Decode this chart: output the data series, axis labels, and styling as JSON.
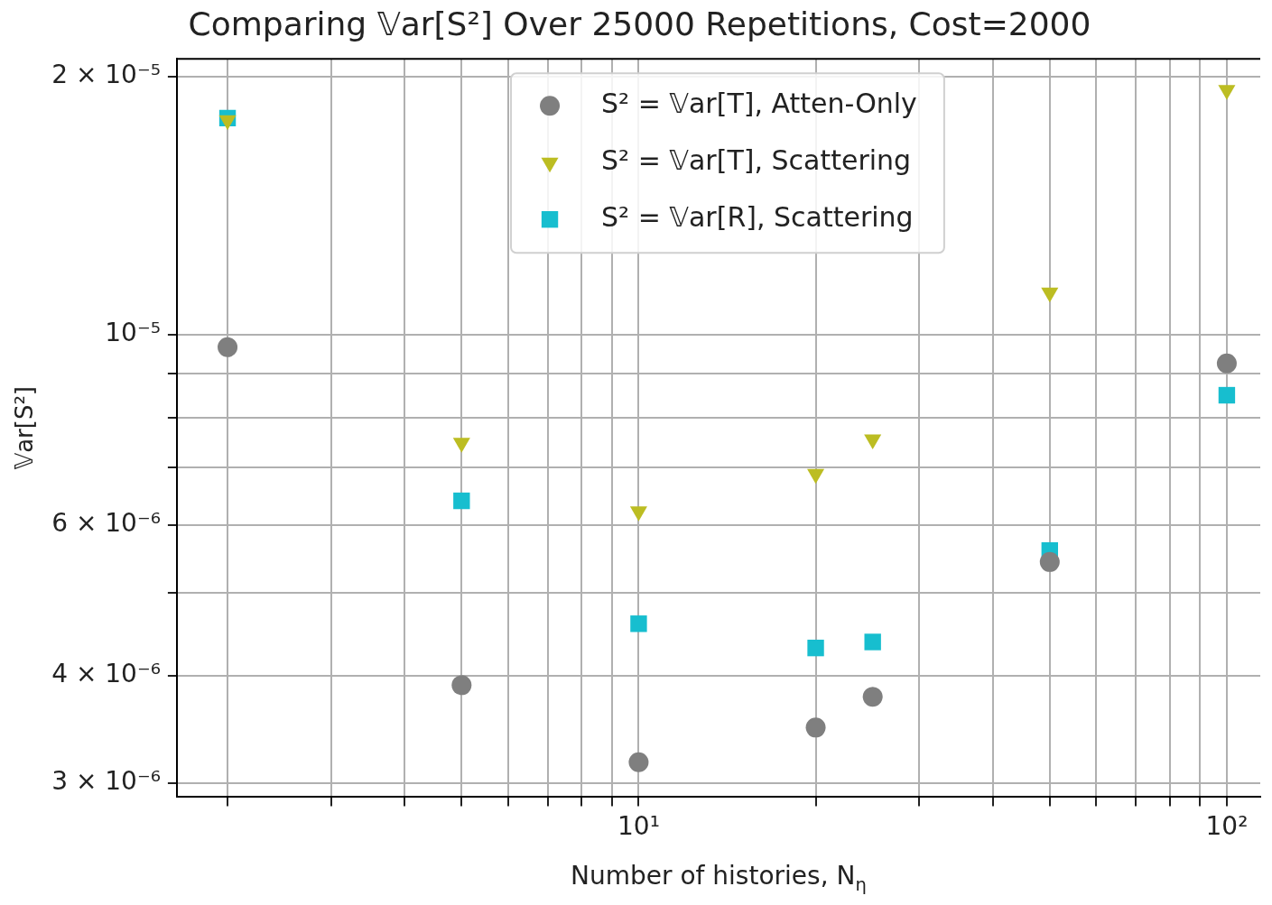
{
  "chart_data": {
    "type": "scatter",
    "title": "Comparing 𝕍ar[S²] Over 25000 Repetitions, Cost=2000",
    "xlabel": "Number of histories, N$_{η}$",
    "ylabel": "𝕍ar[S²]",
    "x": [
      2,
      5,
      10,
      20,
      25,
      50,
      100
    ],
    "series": [
      {
        "name": "S² = 𝕍ar[T], Atten-Only",
        "color": "#7f7f7f",
        "marker": "circle",
        "values": [
          9.67e-06,
          3.9e-06,
          3.17e-06,
          3.48e-06,
          3.78e-06,
          5.43e-06,
          9.26e-06
        ]
      },
      {
        "name": "S² = 𝕍ar[T], Scattering",
        "color": "#bcbd22",
        "marker": "triangle",
        "values": [
          1.78e-05,
          7.48e-06,
          6.22e-06,
          6.88e-06,
          7.55e-06,
          1.12e-05,
          1.93e-05
        ]
      },
      {
        "name": "S² = 𝕍ar[R], Scattering",
        "color": "#17becf",
        "marker": "square",
        "values": [
          1.79e-05,
          6.4e-06,
          4.6e-06,
          4.31e-06,
          4.38e-06,
          5.6e-06,
          8.5e-06
        ]
      }
    ],
    "log": "xy",
    "xlim": [
      1.64,
      114
    ],
    "ylim": [
      2.887e-06,
      2.099e-05
    ],
    "xticks": [
      {
        "value": 2,
        "label": null
      },
      {
        "value": 3,
        "label": null
      },
      {
        "value": 4,
        "label": null
      },
      {
        "value": 5,
        "label": null
      },
      {
        "value": 6,
        "label": null
      },
      {
        "value": 7,
        "label": null
      },
      {
        "value": 8,
        "label": null
      },
      {
        "value": 9,
        "label": null
      },
      {
        "value": 10,
        "label": "10¹"
      },
      {
        "value": 20,
        "label": null
      },
      {
        "value": 30,
        "label": null
      },
      {
        "value": 40,
        "label": null
      },
      {
        "value": 50,
        "label": null
      },
      {
        "value": 60,
        "label": null
      },
      {
        "value": 70,
        "label": null
      },
      {
        "value": 80,
        "label": null
      },
      {
        "value": 90,
        "label": null
      },
      {
        "value": 100,
        "label": "10²"
      }
    ],
    "yticks": [
      {
        "value": 3e-06,
        "label": "3 × 10⁻⁶"
      },
      {
        "value": 4e-06,
        "label": "4 × 10⁻⁶"
      },
      {
        "value": 5e-06,
        "label": null
      },
      {
        "value": 6e-06,
        "label": "6 × 10⁻⁶"
      },
      {
        "value": 7e-06,
        "label": null
      },
      {
        "value": 8e-06,
        "label": null
      },
      {
        "value": 9e-06,
        "label": null
      },
      {
        "value": 1e-05,
        "label": "10⁻⁵"
      },
      {
        "value": 2e-05,
        "label": "2 × 10⁻⁵"
      }
    ],
    "grid": true,
    "legend": "top"
  }
}
